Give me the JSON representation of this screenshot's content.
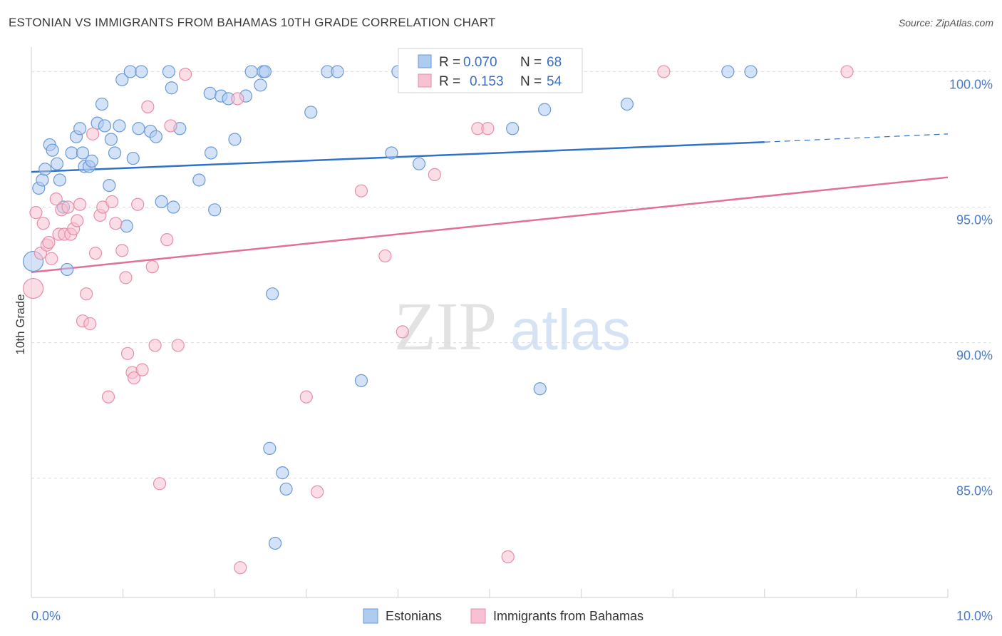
{
  "header": {
    "title": "ESTONIAN VS IMMIGRANTS FROM BAHAMAS 10TH GRADE CORRELATION CHART",
    "source": "Source: ZipAtlas.com"
  },
  "watermark": {
    "zip": "ZIP",
    "atlas": "atlas"
  },
  "colors": {
    "estonians_fill": "#aecbf0",
    "estonians_stroke": "#6a9ad6",
    "estonians_line": "#2f72c8",
    "bahamas_fill": "#f7c1d2",
    "bahamas_stroke": "#e58fab",
    "bahamas_line": "#e0709a",
    "grid": "#dcdcdc",
    "axis_text": "#4a7cc9"
  },
  "legend": {
    "rows": [
      {
        "r_label": "R =",
        "r_value": "0.070",
        "n_label": "N =",
        "n_value": "68"
      },
      {
        "r_label": "R =",
        "r_value": "0.153",
        "n_label": "N =",
        "n_value": "54"
      }
    ]
  },
  "bottom_legend": [
    "Estonians",
    "Immigrants from Bahamas"
  ],
  "chart_data": {
    "type": "scatter",
    "title": "ESTONIAN VS IMMIGRANTS FROM BAHAMAS 10TH GRADE CORRELATION CHART",
    "xlabel": "",
    "ylabel": "10th Grade",
    "xlim": [
      0,
      10
    ],
    "ylim": [
      80.6,
      100.8
    ],
    "x_ticks": [
      "0.0%",
      "10.0%"
    ],
    "y_ticks": [
      {
        "value": 85,
        "label": "85.0%"
      },
      {
        "value": 90,
        "label": "90.0%"
      },
      {
        "value": 95,
        "label": "95.0%"
      },
      {
        "value": 100,
        "label": "100.0%"
      }
    ],
    "series": [
      {
        "name": "Estonians",
        "R": 0.07,
        "N": 68,
        "trend": {
          "x0": 0,
          "y0": 96.3,
          "x1": 8.0,
          "y1": 97.4,
          "dash_to_x": 10.0,
          "dash_to_y": 97.7
        },
        "points": [
          [
            0.02,
            93.0
          ],
          [
            0.08,
            95.7
          ],
          [
            0.12,
            96.0
          ],
          [
            0.15,
            96.4
          ],
          [
            0.2,
            97.3
          ],
          [
            0.23,
            97.1
          ],
          [
            0.28,
            96.6
          ],
          [
            0.31,
            96.0
          ],
          [
            0.35,
            95.0
          ],
          [
            0.39,
            92.7
          ],
          [
            0.44,
            97.0
          ],
          [
            0.49,
            97.6
          ],
          [
            0.53,
            97.9
          ],
          [
            0.56,
            97.0
          ],
          [
            0.58,
            96.5
          ],
          [
            0.63,
            96.5
          ],
          [
            0.66,
            96.7
          ],
          [
            0.72,
            98.1
          ],
          [
            0.77,
            98.8
          ],
          [
            0.8,
            98.0
          ],
          [
            0.85,
            95.8
          ],
          [
            0.87,
            97.5
          ],
          [
            0.91,
            97.0
          ],
          [
            0.96,
            98.0
          ],
          [
            0.99,
            99.7
          ],
          [
            1.04,
            94.3
          ],
          [
            1.08,
            100.0
          ],
          [
            1.11,
            96.8
          ],
          [
            1.17,
            97.9
          ],
          [
            1.2,
            100.0
          ],
          [
            1.3,
            97.8
          ],
          [
            1.36,
            97.6
          ],
          [
            1.42,
            95.2
          ],
          [
            1.5,
            100.0
          ],
          [
            1.53,
            99.4
          ],
          [
            1.55,
            95.0
          ],
          [
            1.62,
            97.9
          ],
          [
            1.83,
            96.0
          ],
          [
            1.95,
            99.2
          ],
          [
            1.96,
            97.0
          ],
          [
            2.0,
            94.9
          ],
          [
            2.07,
            99.1
          ],
          [
            2.15,
            99.0
          ],
          [
            2.22,
            97.5
          ],
          [
            2.34,
            99.1
          ],
          [
            2.4,
            100.0
          ],
          [
            2.5,
            99.5
          ],
          [
            2.53,
            100.0
          ],
          [
            2.55,
            100.0
          ],
          [
            2.6,
            86.1
          ],
          [
            2.63,
            91.8
          ],
          [
            2.66,
            82.6
          ],
          [
            2.74,
            85.2
          ],
          [
            2.78,
            84.6
          ],
          [
            3.05,
            98.5
          ],
          [
            3.23,
            100.0
          ],
          [
            3.34,
            100.0
          ],
          [
            3.6,
            88.6
          ],
          [
            3.93,
            97.0
          ],
          [
            4.0,
            100.0
          ],
          [
            4.23,
            96.6
          ],
          [
            4.5,
            100.0
          ],
          [
            5.25,
            97.9
          ],
          [
            5.55,
            88.3
          ],
          [
            5.6,
            98.6
          ],
          [
            6.5,
            98.8
          ],
          [
            7.6,
            100.0
          ],
          [
            7.85,
            100.0
          ]
        ]
      },
      {
        "name": "Immigrants from Bahamas",
        "R": 0.153,
        "N": 54,
        "trend": {
          "x0": 0,
          "y0": 92.6,
          "x1": 10.0,
          "y1": 96.1
        },
        "points": [
          [
            0.02,
            92.0
          ],
          [
            0.05,
            94.8
          ],
          [
            0.1,
            93.3
          ],
          [
            0.13,
            94.4
          ],
          [
            0.17,
            93.6
          ],
          [
            0.19,
            93.7
          ],
          [
            0.22,
            93.1
          ],
          [
            0.27,
            95.3
          ],
          [
            0.3,
            94.0
          ],
          [
            0.33,
            94.9
          ],
          [
            0.36,
            94.0
          ],
          [
            0.4,
            95.0
          ],
          [
            0.43,
            94.0
          ],
          [
            0.46,
            94.2
          ],
          [
            0.5,
            94.5
          ],
          [
            0.53,
            95.1
          ],
          [
            0.56,
            90.8
          ],
          [
            0.6,
            91.8
          ],
          [
            0.64,
            90.7
          ],
          [
            0.67,
            97.7
          ],
          [
            0.7,
            93.3
          ],
          [
            0.75,
            94.7
          ],
          [
            0.78,
            95.0
          ],
          [
            0.84,
            88.0
          ],
          [
            0.88,
            95.2
          ],
          [
            0.92,
            94.4
          ],
          [
            0.99,
            93.4
          ],
          [
            1.03,
            92.4
          ],
          [
            1.05,
            89.6
          ],
          [
            1.1,
            88.9
          ],
          [
            1.12,
            88.7
          ],
          [
            1.16,
            95.1
          ],
          [
            1.21,
            89.0
          ],
          [
            1.27,
            98.7
          ],
          [
            1.32,
            92.8
          ],
          [
            1.35,
            89.9
          ],
          [
            1.4,
            84.8
          ],
          [
            1.48,
            93.8
          ],
          [
            1.52,
            98.0
          ],
          [
            1.6,
            89.9
          ],
          [
            1.68,
            99.9
          ],
          [
            2.25,
            99.0
          ],
          [
            2.28,
            81.7
          ],
          [
            3.0,
            88.0
          ],
          [
            3.12,
            84.5
          ],
          [
            3.6,
            95.6
          ],
          [
            3.86,
            93.2
          ],
          [
            4.05,
            90.4
          ],
          [
            4.4,
            96.2
          ],
          [
            4.87,
            97.9
          ],
          [
            4.98,
            97.9
          ],
          [
            5.2,
            82.1
          ],
          [
            6.9,
            100.0
          ],
          [
            8.9,
            100.0
          ]
        ]
      }
    ]
  }
}
